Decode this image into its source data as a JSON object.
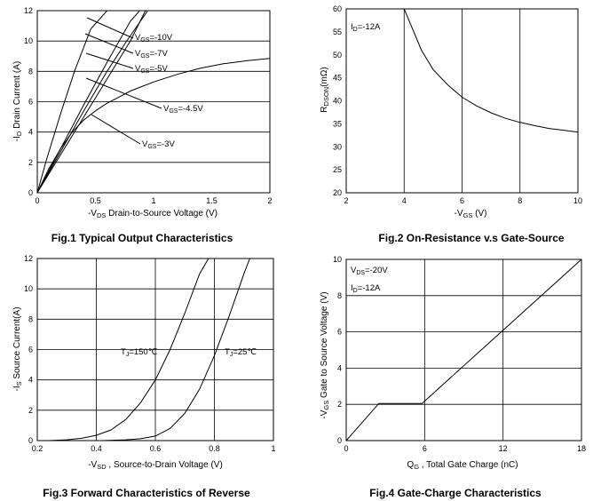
{
  "chart_data": [
    {
      "id": "fig1",
      "type": "line",
      "caption": "Fig.1 Typical Output Characteristics",
      "xlabel_parts": [
        "-V",
        "DS",
        " Drain-to-Source Voltage (V)"
      ],
      "ylabel": "-Iᴅ Drain Current (A)",
      "ylabel_parts": [
        "-I",
        "D",
        " Drain Current (A)"
      ],
      "xlim": [
        0,
        2
      ],
      "ylim": [
        0,
        12
      ],
      "xticks": [
        0,
        0.5,
        1,
        1.5,
        2
      ],
      "xtick_labels": [
        "0",
        "0.5",
        "1",
        "1.5",
        "2"
      ],
      "yticks": [
        0,
        2,
        4,
        6,
        8,
        10,
        12
      ],
      "ytick_labels": [
        "0",
        "2",
        "4",
        "6",
        "8",
        "10",
        "12"
      ],
      "grid": "horizontal",
      "series": [
        {
          "label": "VGS=-10V",
          "x": [
            0,
            0.2,
            0.4,
            0.6,
            0.8,
            0.88
          ],
          "y": [
            0,
            2.9,
            5.8,
            8.6,
            11.3,
            12
          ]
        },
        {
          "label": "VGS=-7V",
          "x": [
            0,
            0.2,
            0.4,
            0.6,
            0.76,
            0.95
          ],
          "y": [
            0,
            2.7,
            5.4,
            8.0,
            9.9,
            12
          ]
        },
        {
          "label": "VGS=-5V",
          "x": [
            0,
            0.2,
            0.4,
            0.6,
            0.8,
            0.93
          ],
          "y": [
            0,
            2.5,
            5.0,
            7.5,
            10.0,
            12
          ]
        },
        {
          "label": "VGS=-4.5V",
          "x": [
            0,
            0.1,
            0.2,
            0.3,
            0.4,
            0.5,
            0.6,
            0.7,
            0.8,
            0.9,
            1.0,
            1.2,
            1.4,
            1.6,
            1.8,
            2.0
          ],
          "y": [
            0,
            1.6,
            2.9,
            4.0,
            4.8,
            5.4,
            5.9,
            6.3,
            6.7,
            7.0,
            7.3,
            7.8,
            8.2,
            8.5,
            8.7,
            8.85
          ]
        },
        {
          "label": "VGS=-3V",
          "x": [
            0,
            0.08,
            0.2,
            0.32,
            0.46,
            0.6,
            0.8
          ],
          "y": [
            0,
            2.2,
            5.2,
            8.0,
            10.8,
            12,
            12
          ]
        }
      ],
      "annotations": [
        {
          "main": "V",
          "sub": "GS",
          "rest": "=-10V"
        },
        {
          "main": "V",
          "sub": "GS",
          "rest": "=-7V"
        },
        {
          "main": "V",
          "sub": "GS",
          "rest": "=-5V"
        },
        {
          "main": "V",
          "sub": "GS",
          "rest": "=-4.5V"
        },
        {
          "main": "V",
          "sub": "GS",
          "rest": "=-3V"
        }
      ]
    },
    {
      "id": "fig2",
      "type": "line",
      "caption": "Fig.2 On-Resistance v.s Gate-Source",
      "xlabel_parts": [
        "-V",
        "GS",
        " (V)"
      ],
      "ylabel_parts": [
        "R",
        "DSON",
        "(mΩ)"
      ],
      "xlim": [
        2,
        10
      ],
      "ylim": [
        20,
        60
      ],
      "xticks": [
        2,
        4,
        6,
        8,
        10
      ],
      "xtick_labels": [
        "2",
        "4",
        "6",
        "8",
        "10"
      ],
      "yticks": [
        20,
        25,
        30,
        35,
        40,
        45,
        50,
        55,
        60
      ],
      "ytick_labels": [
        "20",
        "25",
        "30",
        "35",
        "40",
        "45",
        "50",
        "55",
        "60"
      ],
      "grid": "vertical",
      "series": [
        {
          "x": [
            4.0,
            4.3,
            4.6,
            5.0,
            5.5,
            6.0,
            6.5,
            7.0,
            7.5,
            8.0,
            8.5,
            9.0,
            9.5,
            10.0
          ],
          "y": [
            60,
            55.5,
            51.0,
            46.8,
            43.5,
            40.8,
            38.9,
            37.4,
            36.2,
            35.3,
            34.6,
            34.0,
            33.6,
            33.2
          ]
        }
      ],
      "annotations": [
        {
          "main": "I",
          "sub": "D",
          "rest": "=-12A"
        }
      ]
    },
    {
      "id": "fig3",
      "type": "line",
      "caption": "Fig.3 Forward Characteristics of Reverse",
      "xlabel_parts": [
        "-V",
        "SD",
        " , Source-to-Drain Voltage (V)"
      ],
      "ylabel_parts": [
        "-I",
        "S",
        " Source Current(A)"
      ],
      "xlim": [
        0.2,
        1
      ],
      "ylim": [
        0,
        12
      ],
      "xticks": [
        0.2,
        0.4,
        0.6,
        0.8,
        1
      ],
      "xtick_labels": [
        "0.2",
        "0.4",
        "0.6",
        "0.8",
        "1"
      ],
      "yticks": [
        0,
        2,
        4,
        6,
        8,
        10,
        12
      ],
      "ytick_labels": [
        "0",
        "2",
        "4",
        "6",
        "8",
        "10",
        "12"
      ],
      "grid": "both",
      "series": [
        {
          "label": "TJ=150℃",
          "x": [
            0.24,
            0.3,
            0.35,
            0.4,
            0.45,
            0.5,
            0.55,
            0.6,
            0.65,
            0.7,
            0.75,
            0.78
          ],
          "y": [
            0,
            0.05,
            0.15,
            0.35,
            0.7,
            1.4,
            2.5,
            4.0,
            6.0,
            8.4,
            11.0,
            12
          ]
        },
        {
          "label": "TJ=25℃",
          "x": [
            0.42,
            0.5,
            0.55,
            0.6,
            0.65,
            0.7,
            0.75,
            0.8,
            0.85,
            0.9,
            0.92
          ],
          "y": [
            0,
            0.05,
            0.12,
            0.3,
            0.8,
            1.8,
            3.4,
            5.6,
            8.2,
            11.0,
            12
          ]
        }
      ],
      "annotations": [
        {
          "main": "T",
          "sub": "J",
          "rest": "=150℃"
        },
        {
          "main": "T",
          "sub": "J",
          "rest": "=25℃"
        }
      ]
    },
    {
      "id": "fig4",
      "type": "line",
      "caption": "Fig.4 Gate-Charge Characteristics",
      "xlabel_parts": [
        "Q",
        "G",
        " , Total Gate Charge (nC)"
      ],
      "ylabel_parts": [
        "-V",
        "GS",
        " Gate to Source Voltage (V)"
      ],
      "xlim": [
        0,
        18
      ],
      "ylim": [
        0,
        10
      ],
      "xticks": [
        0,
        6,
        12,
        18
      ],
      "xtick_labels": [
        "0",
        "6",
        "12",
        "18"
      ],
      "yticks": [
        0,
        2,
        4,
        6,
        8,
        10
      ],
      "ytick_labels": [
        "0",
        "2",
        "4",
        "6",
        "8",
        "10"
      ],
      "grid": "both",
      "series": [
        {
          "x": [
            0,
            2.5,
            5.8,
            18
          ],
          "y": [
            0,
            2.05,
            2.05,
            10
          ]
        }
      ],
      "annotations": [
        {
          "main": "V",
          "sub": "DS",
          "rest": "=-20V"
        },
        {
          "main": "I",
          "sub": "D",
          "rest": "=-12A"
        }
      ]
    }
  ]
}
